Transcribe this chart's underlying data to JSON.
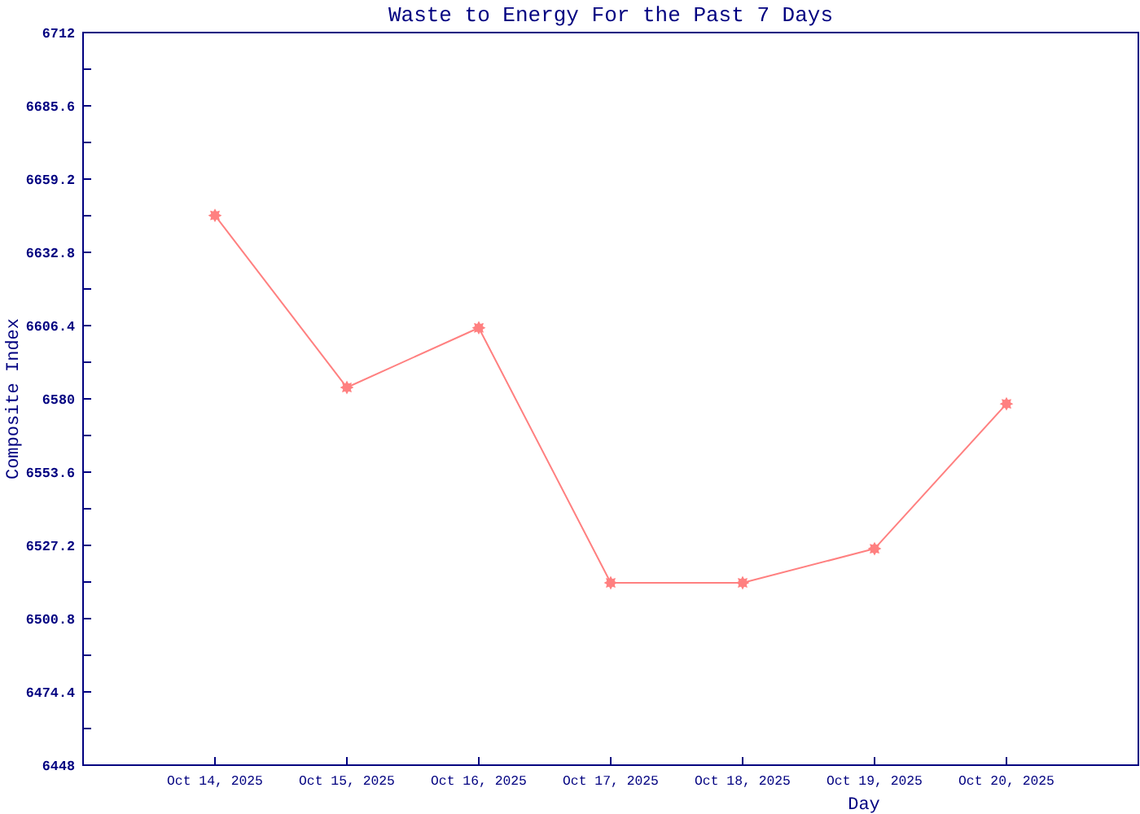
{
  "chart_data": {
    "type": "line",
    "title": "Waste to Energy For the Past 7 Days",
    "xlabel": "Day",
    "ylabel": "Composite Index",
    "categories": [
      "Oct 14, 2025",
      "Oct 15, 2025",
      "Oct 16, 2025",
      "Oct 17, 2025",
      "Oct 18, 2025",
      "Oct 19, 2025",
      "Oct 20, 2025"
    ],
    "series": [
      {
        "color": "#ff8080",
        "values": [
          6646.1,
          6584.1,
          6605.6,
          6513.7,
          6513.7,
          6526.0,
          6578.2
        ]
      }
    ],
    "ylim": [
      6448,
      6712
    ],
    "yticks": [
      6448,
      {
        "value": 6461.2,
        "label": null
      },
      6474.4,
      {
        "value": 6487.6,
        "label": null
      },
      6500.8,
      {
        "value": 6514,
        "label": null
      },
      6527.2,
      {
        "value": 6540.4,
        "label": null
      },
      6553.6,
      {
        "value": 6566.8,
        "label": null
      },
      6580,
      {
        "value": 6593.2,
        "label": null
      },
      6606.4,
      {
        "value": 6619.6,
        "label": null
      },
      6632.8,
      {
        "value": 6646,
        "label": null
      },
      6659.2,
      {
        "value": 6672.4,
        "label": null
      },
      6685.6,
      {
        "value": 6698.8,
        "label": null
      },
      6712
    ],
    "marker": "star"
  }
}
